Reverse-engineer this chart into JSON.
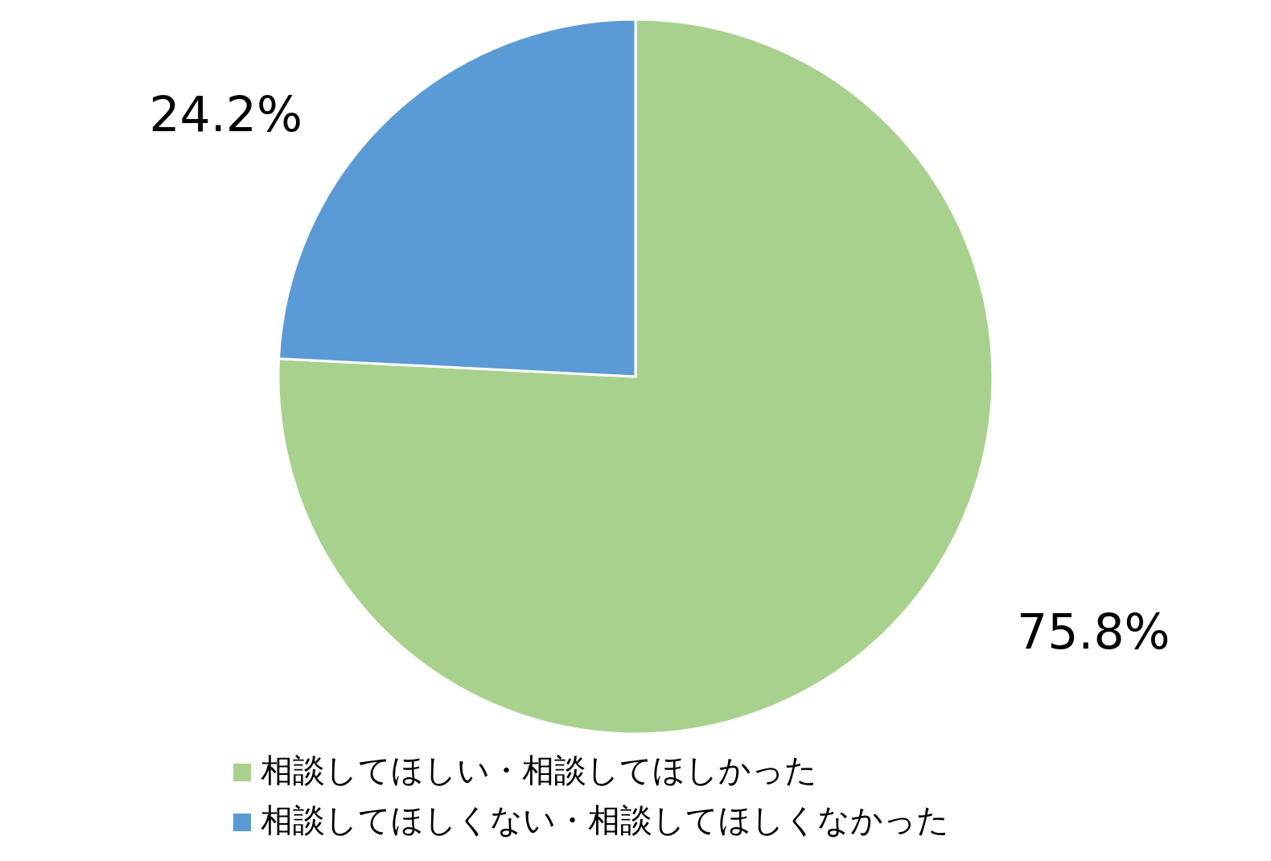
{
  "chart_data": {
    "type": "pie",
    "categories": [
      "相談してほしい・相談してほしかった",
      "相談してほしくない・相談してほしくなかった"
    ],
    "values": [
      75.8,
      24.2
    ],
    "colors": [
      "#a9d18e",
      "#5b9bd5"
    ],
    "value_labels": [
      "75.8%",
      "24.2%"
    ],
    "legend": "bottom"
  }
}
